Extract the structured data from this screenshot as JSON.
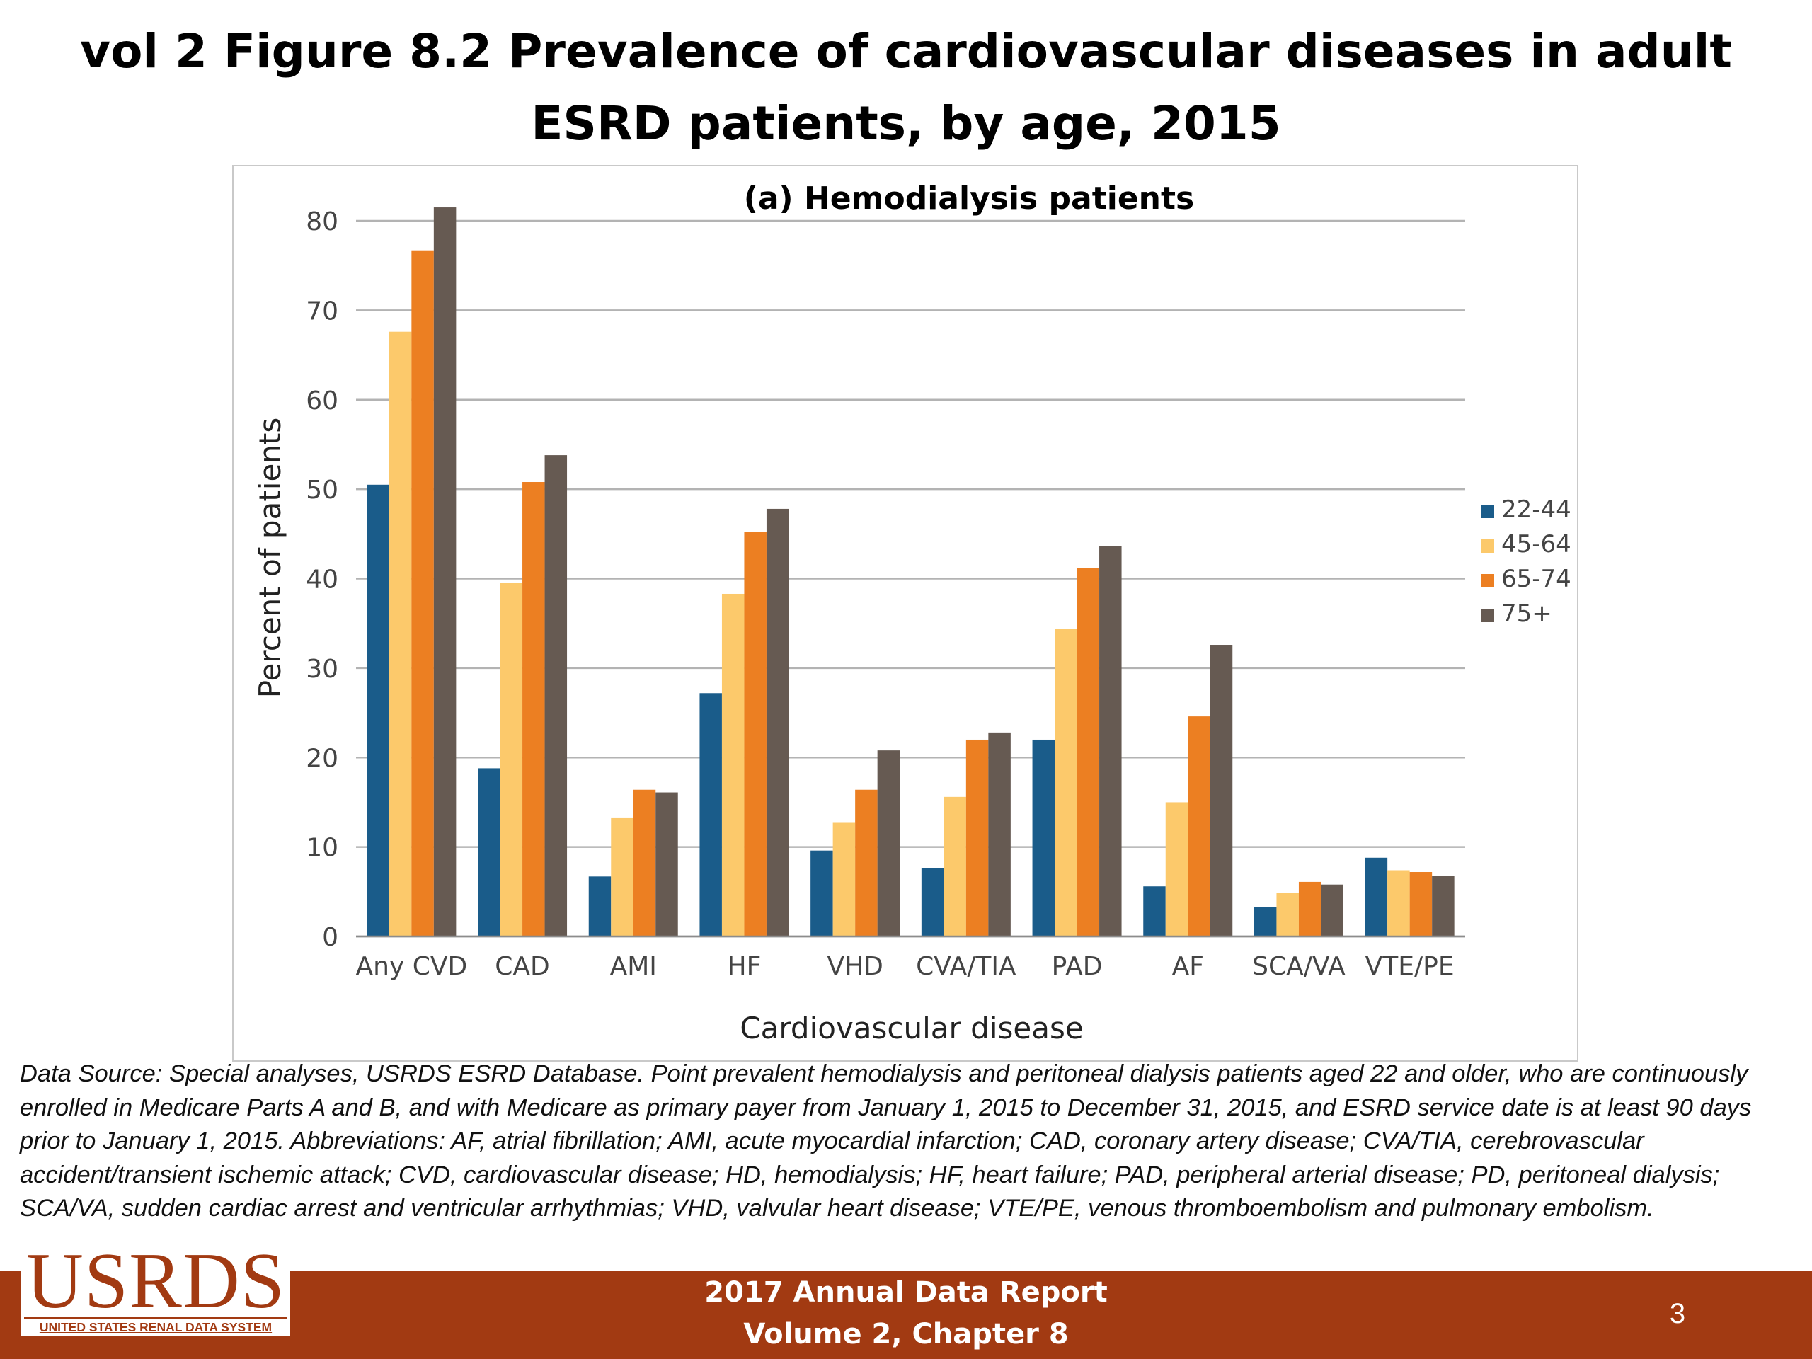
{
  "slide": {
    "title": "vol 2 Figure 8.2 Prevalence of cardiovascular diseases in adult ESRD patients, by age, 2015",
    "source_note": "Data Source: Special analyses, USRDS ESRD Database. Point prevalent hemodialysis and peritoneal dialysis patients aged 22 and older, who are continuously enrolled in Medicare Parts A and B, and with Medicare as primary payer from January 1, 2015 to December 31, 2015, and ESRD service date is at least 90 days prior to January 1, 2015. Abbreviations: AF, atrial fibrillation; AMI, acute myocardial infarction; CAD, coronary artery disease; CVA/TIA, cerebrovascular accident/transient ischemic attack; CVD, cardiovascular disease; HD, hemodialysis; HF, heart failure; PAD, peripheral arterial disease; PD, peritoneal dialysis; SCA/VA, sudden cardiac arrest and ventricular arrhythmias; VHD, valvular heart disease; VTE/PE, venous thromboembolism and pulmonary embolism."
  },
  "footer": {
    "line1": "2017 Annual Data Report",
    "line2": "Volume 2, Chapter 8",
    "page_number": "3",
    "background_color": "#a23a12"
  },
  "logo": {
    "text": "USRDS",
    "subtitle": "UNITED STATES RENAL DATA SYSTEM",
    "color": "#a23a12"
  },
  "chart_data": {
    "type": "bar",
    "title": "(a) Hemodialysis patients",
    "xlabel": "Cardiovascular disease",
    "ylabel": "Percent of patients",
    "ylim": [
      0,
      80
    ],
    "yticks": [
      0,
      10,
      20,
      30,
      40,
      50,
      60,
      70,
      80
    ],
    "grid": true,
    "legend_position": "right",
    "categories": [
      "Any CVD",
      "CAD",
      "AMI",
      "HF",
      "VHD",
      "CVA/TIA",
      "PAD",
      "AF",
      "SCA/VA",
      "VTE/PE"
    ],
    "series": [
      {
        "name": "22-44",
        "color": "#1a5c8a",
        "values": [
          50.5,
          18.8,
          6.7,
          27.2,
          9.6,
          7.6,
          22.0,
          5.6,
          3.3,
          8.8
        ]
      },
      {
        "name": "45-64",
        "color": "#fcc96b",
        "values": [
          67.6,
          39.5,
          13.3,
          38.3,
          12.7,
          15.6,
          34.4,
          15.0,
          4.9,
          7.4
        ]
      },
      {
        "name": "65-74",
        "color": "#ec7f22",
        "values": [
          76.7,
          50.8,
          16.4,
          45.2,
          16.4,
          22.0,
          41.2,
          24.6,
          6.1,
          7.2
        ]
      },
      {
        "name": "75+",
        "color": "#665a52",
        "values": [
          81.5,
          53.8,
          16.1,
          47.8,
          20.8,
          22.8,
          43.6,
          32.6,
          5.8,
          6.8
        ]
      }
    ]
  }
}
